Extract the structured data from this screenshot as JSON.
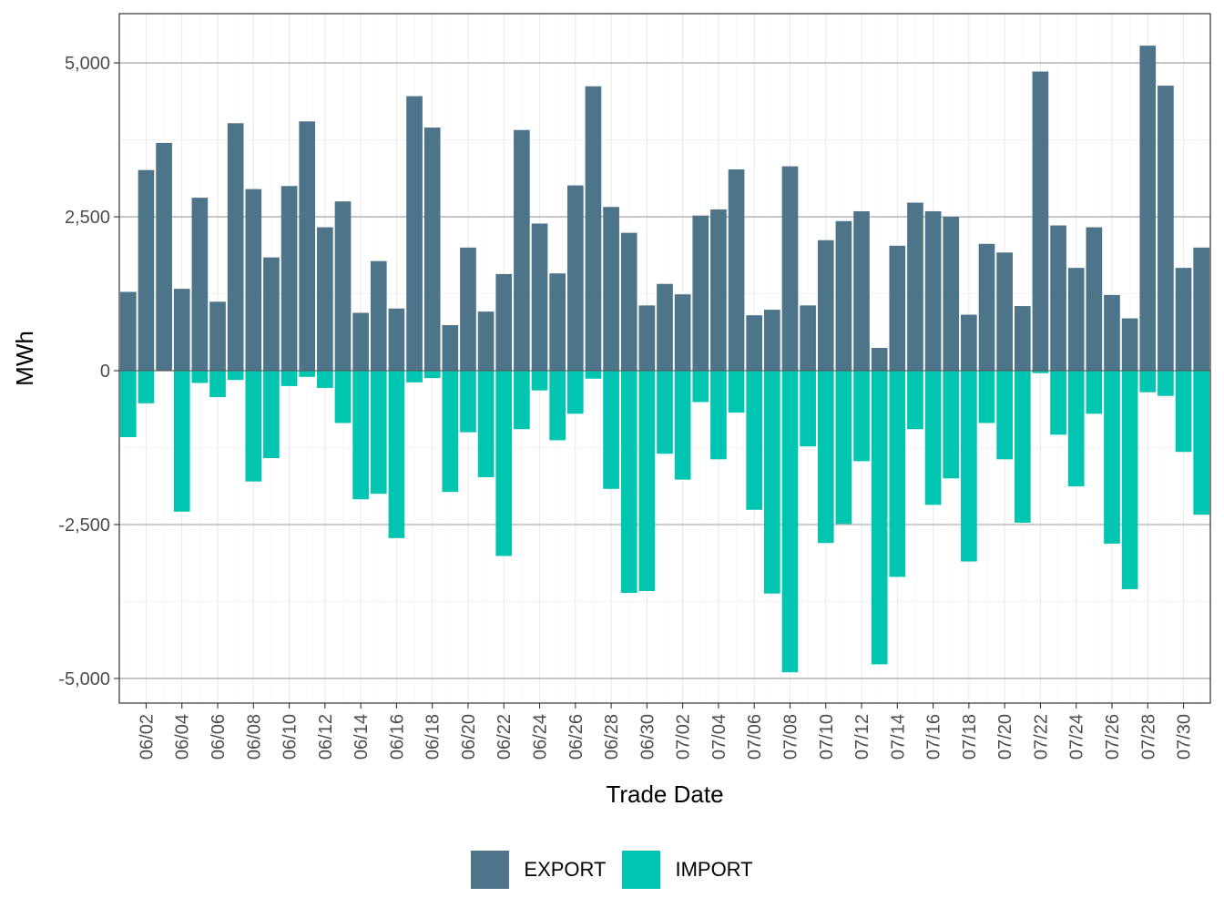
{
  "chart_data": {
    "type": "bar",
    "stacked": true,
    "title": "",
    "xlabel": "Trade Date",
    "ylabel": "MWh",
    "ylim": [
      -5400,
      5800
    ],
    "yticks": [
      -5000,
      -2500,
      0,
      2500,
      5000
    ],
    "ytick_labels": [
      "-5,000",
      "-2,500",
      "0",
      "2,500",
      "5,000"
    ],
    "xtick_labels": [
      "06/02",
      "06/04",
      "06/06",
      "06/08",
      "06/10",
      "06/12",
      "06/14",
      "06/16",
      "06/18",
      "06/20",
      "06/22",
      "06/24",
      "06/26",
      "06/28",
      "06/30",
      "07/02",
      "07/04",
      "07/06",
      "07/08",
      "07/10",
      "07/12",
      "07/14",
      "07/16",
      "07/18",
      "07/20",
      "07/22",
      "07/24",
      "07/26",
      "07/28",
      "07/30"
    ],
    "categories": [
      "06/01",
      "06/02",
      "06/03",
      "06/04",
      "06/05",
      "06/06",
      "06/07",
      "06/08",
      "06/09",
      "06/10",
      "06/11",
      "06/12",
      "06/13",
      "06/14",
      "06/15",
      "06/16",
      "06/17",
      "06/18",
      "06/19",
      "06/20",
      "06/21",
      "06/22",
      "06/23",
      "06/24",
      "06/25",
      "06/26",
      "06/27",
      "06/28",
      "06/29",
      "06/30",
      "07/01",
      "07/02",
      "07/03",
      "07/04",
      "07/05",
      "07/06",
      "07/07",
      "07/08",
      "07/09",
      "07/10",
      "07/11",
      "07/12",
      "07/13",
      "07/14",
      "07/15",
      "07/16",
      "07/17",
      "07/18",
      "07/19",
      "07/20",
      "07/21",
      "07/22",
      "07/23",
      "07/24",
      "07/25",
      "07/26",
      "07/27",
      "07/28",
      "07/29",
      "07/30",
      "07/31"
    ],
    "series": [
      {
        "name": "EXPORT",
        "color": "#4e7489",
        "values": [
          1280,
          3260,
          3700,
          1330,
          2810,
          1120,
          4020,
          2950,
          1840,
          3000,
          4050,
          2330,
          2750,
          940,
          1780,
          1010,
          4460,
          3950,
          740,
          2000,
          960,
          1570,
          3910,
          2390,
          1580,
          3010,
          4620,
          2660,
          2240,
          1060,
          1410,
          1240,
          2520,
          2620,
          3270,
          900,
          990,
          3320,
          1060,
          2120,
          2430,
          2590,
          370,
          2030,
          2730,
          2590,
          2500,
          910,
          2060,
          1920,
          1050,
          4860,
          2360,
          1670,
          2330,
          1230,
          850,
          5280,
          4630,
          1670,
          2000
        ]
      },
      {
        "name": "IMPORT",
        "color": "#00c5b0",
        "values": [
          -1080,
          -530,
          0,
          -2290,
          -200,
          -430,
          -150,
          -1800,
          -1420,
          -250,
          -100,
          -280,
          -850,
          -2090,
          -2000,
          -2720,
          -190,
          -120,
          -1970,
          -1000,
          -1730,
          -3010,
          -950,
          -320,
          -1130,
          -700,
          -130,
          -1920,
          -3610,
          -3580,
          -1350,
          -1770,
          -510,
          -1440,
          -680,
          -2260,
          -3620,
          -4900,
          -1230,
          -2800,
          -2490,
          -1470,
          -4770,
          -3350,
          -950,
          -2180,
          -1750,
          -3100,
          -850,
          -1440,
          -2470,
          -40,
          -1040,
          -1880,
          -700,
          -2810,
          -3550,
          -350,
          -410,
          -1320,
          -2340
        ]
      }
    ],
    "legend_position": "bottom",
    "grid": true
  }
}
